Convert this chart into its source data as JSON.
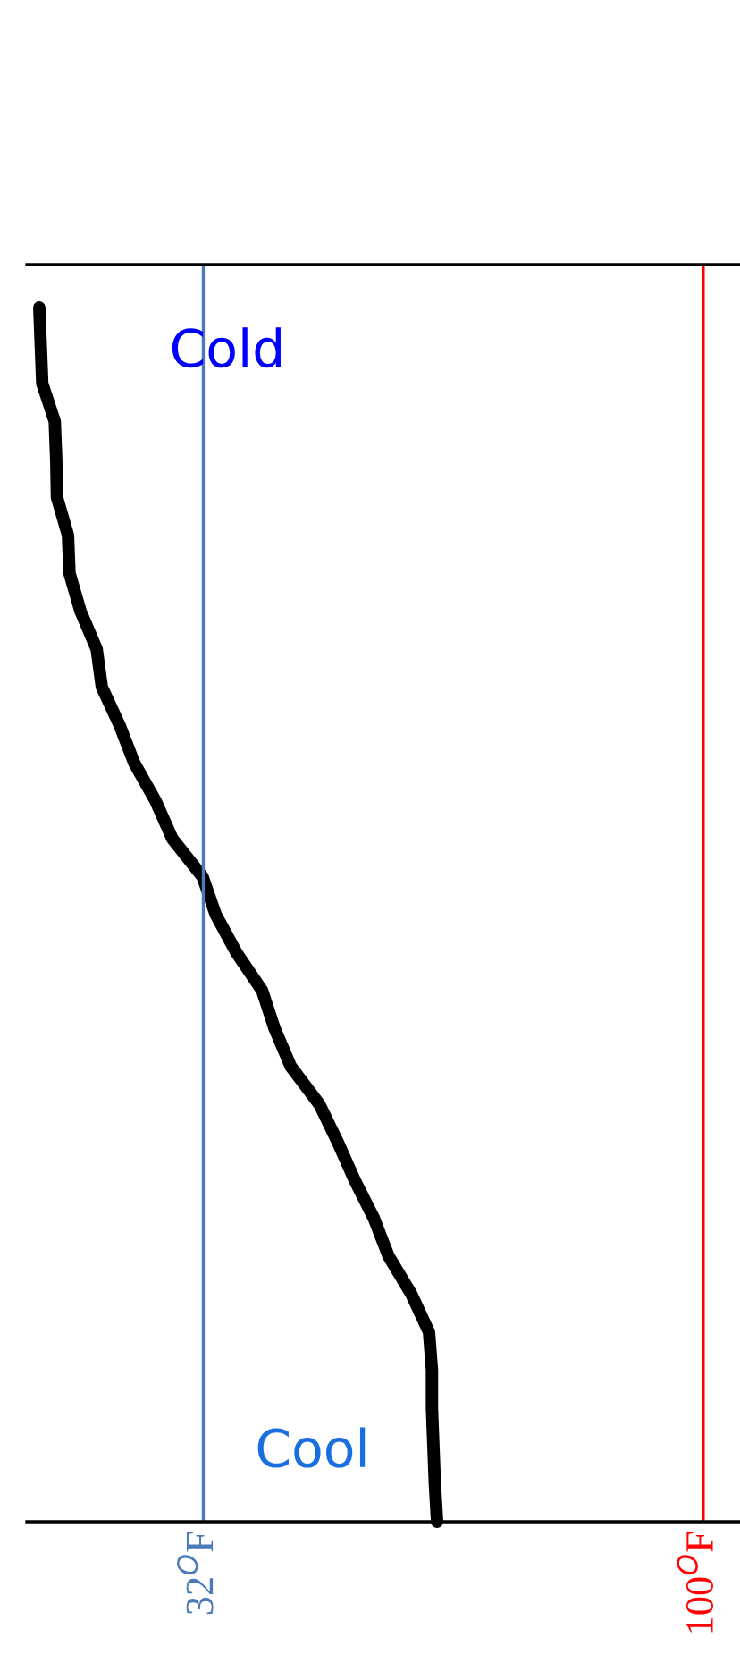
{
  "chart_data": {
    "type": "line",
    "orientation": "horizontal",
    "tick_labels": "x",
    "legend": false,
    "marker": "none",
    "line_style": "solid",
    "xlim": [
      8,
      105
    ],
    "xticks": [
      {
        "value": 32,
        "label": "32$^{O}$F"
      },
      {
        "value": 100,
        "label": "100$^{O}$F"
      }
    ],
    "categories": [
      null,
      null,
      null,
      null,
      null,
      null,
      null,
      null,
      null,
      null,
      null,
      null,
      null,
      null,
      null,
      null,
      null,
      null,
      null,
      null,
      null,
      null,
      null,
      null,
      null,
      null,
      null,
      null,
      null,
      null,
      null,
      null,
      null
    ],
    "series": [
      {
        "color": "#000000",
        "values": [
          9.7,
          9.9,
          10.1,
          11.8,
          12,
          12.1,
          13.6,
          13.8,
          15.3,
          17.5,
          18.2,
          20.6,
          22.6,
          25.5,
          27.8,
          31.9,
          33.7,
          36.5,
          40,
          41.7,
          43.9,
          47.8,
          50.3,
          52.6,
          55.2,
          57.2,
          60.3,
          62.7,
          63.1,
          63.1,
          63.3,
          63.5,
          63.8
        ]
      }
    ],
    "ref_lines": [
      {
        "axis": "x",
        "value": 32,
        "color": "#4a7ab8"
      },
      {
        "axis": "x",
        "value": 100,
        "color": "#ff0000"
      }
    ],
    "annotations": [
      "Cold",
      "Cool"
    ]
  }
}
